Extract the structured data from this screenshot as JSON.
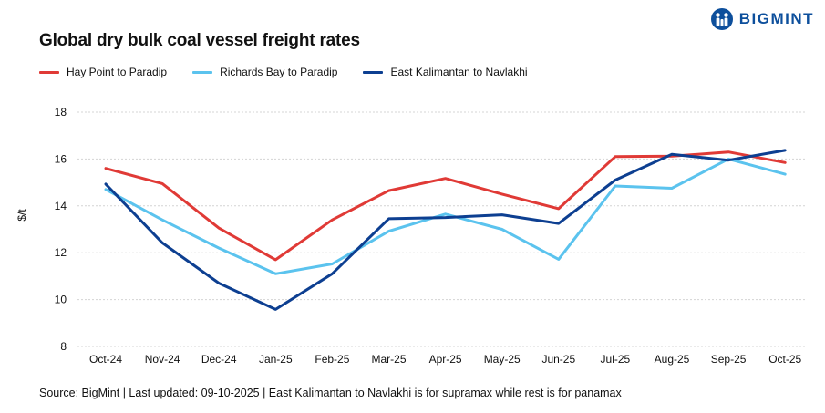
{
  "brand": {
    "name": "BIGMINT",
    "color": "#0d4f9c"
  },
  "chart_data": {
    "type": "line",
    "title": "Global dry bulk coal vessel freight rates",
    "xlabel": "",
    "ylabel": "$/t",
    "ylim": [
      8,
      18
    ],
    "yticks": [
      8,
      10,
      12,
      14,
      16,
      18
    ],
    "grid": true,
    "legend_position": "top-left",
    "categories": [
      "Oct-24",
      "Nov-24",
      "Dec-24",
      "Jan-25",
      "Feb-25",
      "Mar-25",
      "Apr-25",
      "May-25",
      "Jun-25",
      "Jul-25",
      "Aug-25",
      "Sep-25",
      "Oct-25"
    ],
    "series": [
      {
        "name": "Hay Point to Paradip",
        "color": "#e03a36",
        "values": [
          15.6,
          14.95,
          13.05,
          11.7,
          13.4,
          14.65,
          15.17,
          14.5,
          13.88,
          16.1,
          16.12,
          16.3,
          15.85
        ]
      },
      {
        "name": "Richards Bay to Paradip",
        "color": "#5bc3ee",
        "values": [
          14.7,
          13.4,
          12.2,
          11.1,
          11.52,
          12.92,
          13.65,
          13.0,
          11.72,
          14.85,
          14.75,
          16.0,
          15.35
        ]
      },
      {
        "name": "East Kalimantan to Navlakhi",
        "color": "#0d3f91",
        "values": [
          14.93,
          12.42,
          10.7,
          9.58,
          11.1,
          13.45,
          13.5,
          13.62,
          13.25,
          15.1,
          16.2,
          15.95,
          16.37
        ]
      }
    ]
  },
  "source": "Source: BigMint | Last updated: 09-10-2025 | East Kalimantan to Navlakhi is for supramax while rest is for panamax"
}
